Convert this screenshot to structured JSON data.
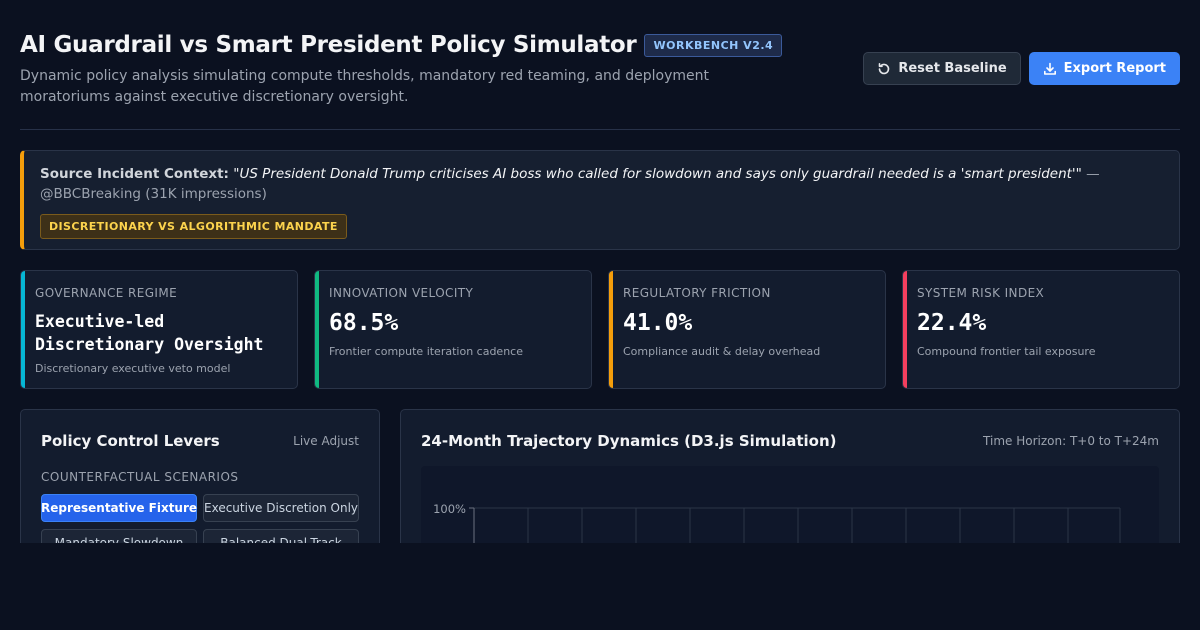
{
  "header": {
    "title": "AI Guardrail vs Smart President Policy Simulator",
    "version": "WORKBENCH V2.4",
    "subtitle": "Dynamic policy analysis simulating compute thresholds, mandatory red teaming, and deployment moratoriums against executive discretionary oversight.",
    "reset_label": "Reset Baseline",
    "export_label": "Export Report"
  },
  "context": {
    "label": "Source Incident Context:",
    "quote": "\"US President Donald Trump criticises AI boss who called for slowdown and says only guardrail needed is a 'smart president'\"",
    "source": "— @BBCBreaking (31K impressions)",
    "tag": "DISCRETIONARY VS ALGORITHMIC MANDATE"
  },
  "kpis": [
    {
      "label": "GOVERNANCE REGIME",
      "value": "Executive-led Discretionary Oversight",
      "sub": "Discretionary executive veto model",
      "color": "#06b6d4"
    },
    {
      "label": "INNOVATION VELOCITY",
      "value": "68.5%",
      "sub": "Frontier compute iteration cadence",
      "color": "#10b981"
    },
    {
      "label": "REGULATORY FRICTION",
      "value": "41.0%",
      "sub": "Compliance audit & delay overhead",
      "color": "#f59e0b"
    },
    {
      "label": "SYSTEM RISK INDEX",
      "value": "22.4%",
      "sub": "Compound frontier tail exposure",
      "color": "#f43f5e"
    }
  ],
  "levers": {
    "title": "Policy Control Levers",
    "meta": "Live Adjust",
    "section": "COUNTERFACTUAL SCENARIOS",
    "scenarios": [
      "Representative Fixture",
      "Executive Discretion Only",
      "Mandatory Slowdown",
      "Balanced Dual-Track"
    ]
  },
  "trajectory": {
    "title": "24-Month Trajectory Dynamics (D3.js Simulation)",
    "meta": "Time Horizon: T+0 to T+24m",
    "y_tick_top": "100%"
  },
  "colors": {
    "accent": "#3b82f6",
    "warning": "#f59e0b",
    "background": "#0b1120"
  }
}
